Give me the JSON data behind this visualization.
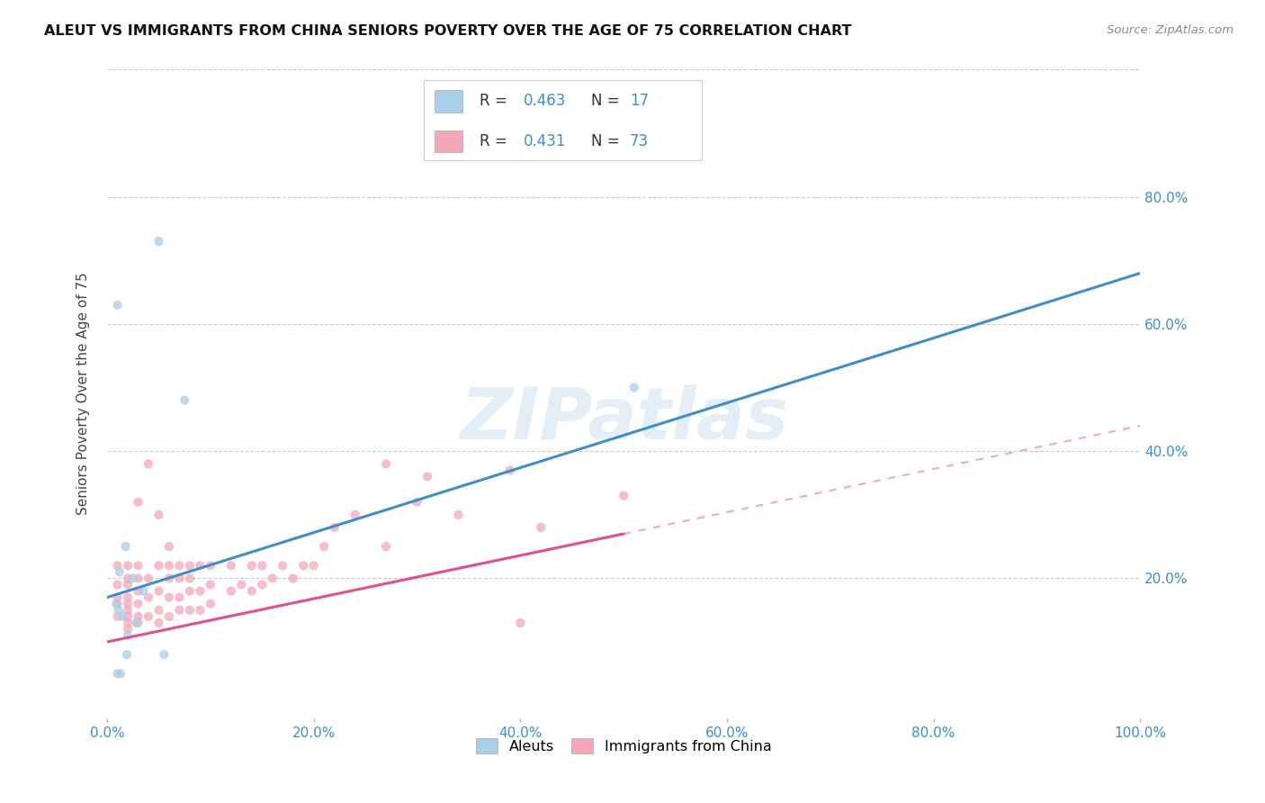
{
  "title": "ALEUT VS IMMIGRANTS FROM CHINA SENIORS POVERTY OVER THE AGE OF 75 CORRELATION CHART",
  "source": "Source: ZipAtlas.com",
  "ylabel": "Seniors Poverty Over the Age of 75",
  "xlim": [
    0,
    100
  ],
  "ylim": [
    0,
    100
  ],
  "xtick_vals": [
    0,
    20,
    40,
    60,
    80,
    100
  ],
  "xtick_labels": [
    "0.0%",
    "20.0%",
    "40.0%",
    "60.0%",
    "80.0%",
    "100.0%"
  ],
  "ytick_right_vals": [
    20,
    40,
    60,
    80
  ],
  "ytick_right_labels": [
    "20.0%",
    "40.0%",
    "60.0%",
    "80.0%"
  ],
  "watermark_text": "ZIPatlas",
  "aleut_color": "#a8cfe8",
  "china_color": "#f4a7b9",
  "aleut_line_color": "#3d8ec9",
  "china_line_color": "#e05090",
  "background_color": "#ffffff",
  "grid_color": "#cccccc",
  "aleut_R": "0.463",
  "aleut_N": "17",
  "china_R": "0.431",
  "china_N": "73",
  "aleut_scatter_x": [
    1.5,
    1.0,
    5.0,
    1.8,
    1.2,
    3.5,
    1.1,
    2.5,
    2.8,
    2.0,
    1.9,
    1.3,
    7.5,
    51.0,
    1.0,
    5.5,
    0.9
  ],
  "aleut_scatter_y": [
    14,
    63,
    73,
    25,
    21,
    18,
    15,
    20,
    13,
    11,
    8,
    5,
    48,
    50,
    5,
    8,
    16
  ],
  "china_scatter_x": [
    1,
    1,
    1,
    1,
    1,
    2,
    2,
    2,
    2,
    2,
    2,
    2,
    2,
    2,
    3,
    3,
    3,
    3,
    3,
    3,
    3,
    4,
    4,
    4,
    4,
    5,
    5,
    5,
    5,
    5,
    6,
    6,
    6,
    6,
    6,
    7,
    7,
    7,
    7,
    8,
    8,
    8,
    8,
    9,
    9,
    9,
    10,
    10,
    10,
    12,
    12,
    13,
    14,
    14,
    15,
    15,
    16,
    17,
    18,
    19,
    20,
    21,
    22,
    24,
    27,
    27,
    30,
    31,
    34,
    39,
    40,
    42,
    50
  ],
  "china_scatter_y": [
    14,
    16,
    17,
    19,
    22,
    12,
    13,
    14,
    15,
    16,
    17,
    19,
    20,
    22,
    13,
    14,
    16,
    18,
    20,
    22,
    32,
    14,
    17,
    20,
    38,
    13,
    15,
    18,
    22,
    30,
    14,
    17,
    20,
    22,
    25,
    15,
    17,
    20,
    22,
    15,
    18,
    20,
    22,
    15,
    18,
    22,
    16,
    19,
    22,
    18,
    22,
    19,
    18,
    22,
    19,
    22,
    20,
    22,
    20,
    22,
    22,
    25,
    28,
    30,
    25,
    38,
    32,
    36,
    30,
    37,
    13,
    28,
    33
  ],
  "aleut_line_x0": 0,
  "aleut_line_x1": 100,
  "aleut_line_y0": 17,
  "aleut_line_y1": 68,
  "china_line_solid_x0": 0,
  "china_line_solid_x1": 50,
  "china_line_solid_y0": 10,
  "china_line_solid_y1": 27,
  "china_line_dash_x0": 50,
  "china_line_dash_x1": 100,
  "china_line_dash_y0": 27,
  "china_line_dash_y1": 44
}
